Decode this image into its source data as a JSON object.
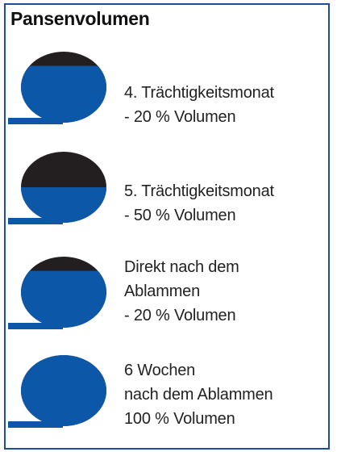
{
  "title": "Pansenvolumen",
  "colors": {
    "fill": "#0d57a8",
    "empty": "#231f20",
    "border": "#1f4d99"
  },
  "stages": [
    {
      "lines": [
        "4. Trächtigkeitsmonat",
        "- 20 % Volumen"
      ],
      "empty_fraction": 0.2
    },
    {
      "lines": [
        "5. Trächtigkeitsmonat",
        "- 50 % Volumen"
      ],
      "empty_fraction": 0.5
    },
    {
      "lines": [
        "Direkt nach dem",
        "Ablammen",
        "- 20 % Volumen"
      ],
      "empty_fraction": 0.2
    },
    {
      "lines": [
        "6 Wochen",
        "nach dem Ablammen",
        "100 % Volumen"
      ],
      "empty_fraction": 0.0
    }
  ]
}
